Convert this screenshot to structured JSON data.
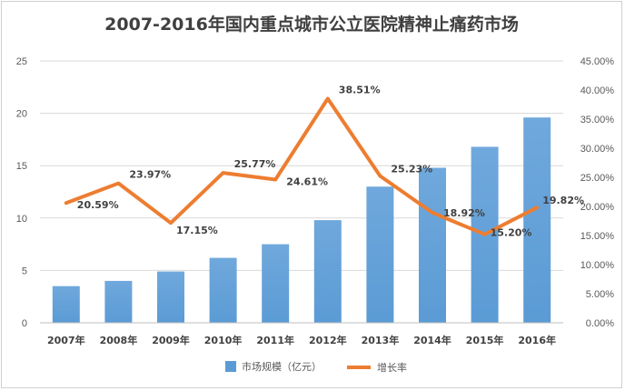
{
  "chart_data": {
    "type": "bar",
    "title": "2007-2016年国内重点城市公立医院精神止痛药市场",
    "categories": [
      "2007年",
      "2008年",
      "2009年",
      "2010年",
      "2011年",
      "2012年",
      "2013年",
      "2014年",
      "2015年",
      "2016年"
    ],
    "series": [
      {
        "name": "市场规模（亿元）",
        "type": "bar",
        "axis": "left",
        "color": "#5b9bd5",
        "values": [
          3.5,
          4.0,
          4.9,
          6.2,
          7.5,
          9.8,
          13.0,
          14.8,
          16.8,
          19.6
        ]
      },
      {
        "name": "增长率",
        "type": "line",
        "axis": "right",
        "color": "#ed7d31",
        "values": [
          20.59,
          23.97,
          17.15,
          25.77,
          24.61,
          38.51,
          25.23,
          18.92,
          15.2,
          19.82
        ],
        "labels": [
          "20.59%",
          "23.97%",
          "17.15%",
          "25.77%",
          "24.61%",
          "38.51%",
          "25.23%",
          "18.92%",
          "15.20%",
          "19.82%"
        ]
      }
    ],
    "y_left": {
      "min": 0,
      "max": 25,
      "ticks": [
        "0",
        "5",
        "10",
        "15",
        "20",
        "25"
      ]
    },
    "y_right": {
      "min": 0,
      "max": 45,
      "ticks": [
        "0.00%",
        "5.00%",
        "10.00%",
        "15.00%",
        "20.00%",
        "25.00%",
        "30.00%",
        "35.00%",
        "40.00%",
        "45.00%"
      ]
    },
    "grid": true,
    "legend_position": "bottom"
  }
}
